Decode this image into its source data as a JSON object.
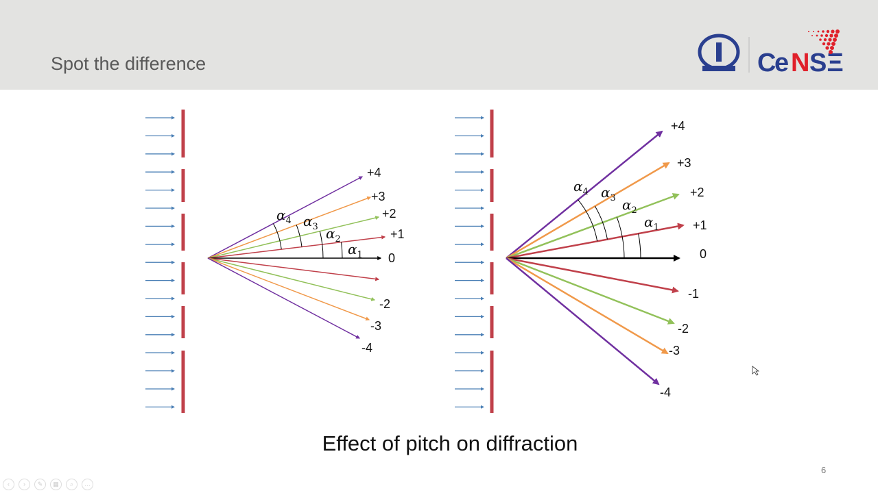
{
  "slide": {
    "title": "Spot the difference",
    "caption": "Effect of pitch on diffraction",
    "page_number": "6",
    "logo_text": "CeNSE"
  },
  "left_diagram": {
    "order_labels": [
      "+4",
      "+3",
      "+2",
      "+1",
      "0",
      "-2",
      "-3",
      "-4"
    ],
    "angle_labels": [
      "α4",
      "α3",
      "α2",
      "α1"
    ]
  },
  "right_diagram": {
    "order_labels": [
      "+4",
      "+3",
      "+2",
      "+1",
      "0",
      "-1",
      "-2",
      "-3",
      "-4"
    ],
    "angle_labels": [
      "α4",
      "α3",
      "α2",
      "α1"
    ]
  },
  "colors": {
    "order_4": "#7030a0",
    "order_3": "#f0994a",
    "order_2": "#92c15a",
    "order_1": "#c0404a",
    "order_0": "#000000",
    "incident": "#4a7fb5",
    "grating": "#c0404a",
    "header_bg": "#e3e3e1"
  }
}
